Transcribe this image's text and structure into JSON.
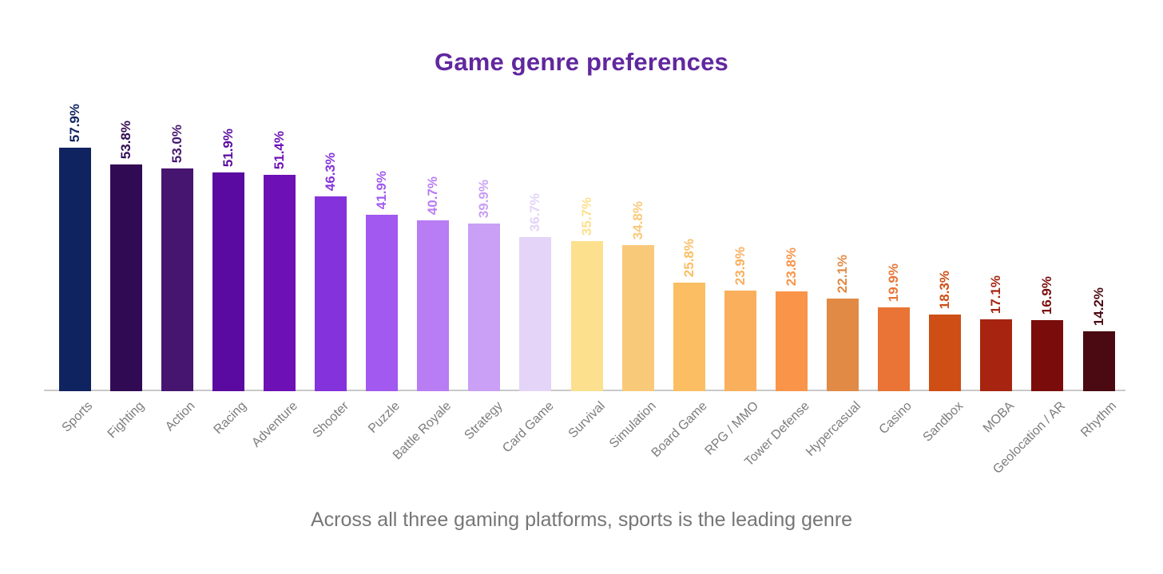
{
  "subtitle": "Across all three gaming platforms, sports is the leading genre",
  "colors": {
    "title": "#61279E",
    "axis_line": "#C9C9C9",
    "category_label": "#7C7C7C",
    "subtitle": "#767676",
    "background": "#FFFFFF"
  },
  "chart_data": {
    "type": "bar",
    "title": "Game genre preferences",
    "subtitle": "Across all three gaming platforms, sports is the leading genre",
    "categories": [
      "Sports",
      "Fighting",
      "Action",
      "Racing",
      "Adventure",
      "Shooter",
      "Puzzle",
      "Battle Royale",
      "Strategy",
      "Card Game",
      "Survival",
      "Simulation",
      "Board Game",
      "RPG / MMO",
      "Tower Defense",
      "Hypercasual",
      "Casino",
      "Sandbox",
      "MOBA",
      "Geolocation / AR",
      "Rhythm"
    ],
    "values": [
      57.9,
      53.8,
      53.0,
      51.9,
      51.4,
      46.3,
      41.9,
      40.7,
      39.9,
      36.7,
      35.7,
      34.8,
      25.8,
      23.9,
      23.8,
      22.1,
      19.9,
      18.3,
      17.1,
      16.9,
      14.2
    ],
    "value_labels": [
      "57.9%",
      "53.8%",
      "53.0%",
      "51.9%",
      "51.4%",
      "46.3%",
      "41.9%",
      "40.7%",
      "39.9%",
      "36.7%",
      "35.7%",
      "34.8%",
      "25.8%",
      "23.9%",
      "23.8%",
      "22.1%",
      "19.9%",
      "18.3%",
      "17.1%",
      "16.9%",
      "14.2%"
    ],
    "bar_colors": [
      "#102361",
      "#310A54",
      "#45156F",
      "#5A0AA0",
      "#6D10B5",
      "#8432DB",
      "#A159F0",
      "#B87CF3",
      "#C9A0F5",
      "#E4D4F8",
      "#FCE08D",
      "#F9C97A",
      "#FBBE63",
      "#FAAF5C",
      "#FA9449",
      "#E18A45",
      "#E97435",
      "#CE4E15",
      "#A62410",
      "#7A0C0B",
      "#4B0911"
    ],
    "xlabel": "",
    "ylabel": "",
    "ylim": [
      0,
      60
    ],
    "grid": false,
    "legend": false,
    "value_label_rotation": -90,
    "category_label_rotation": -45,
    "value_labels_colored_like_bars": true
  }
}
